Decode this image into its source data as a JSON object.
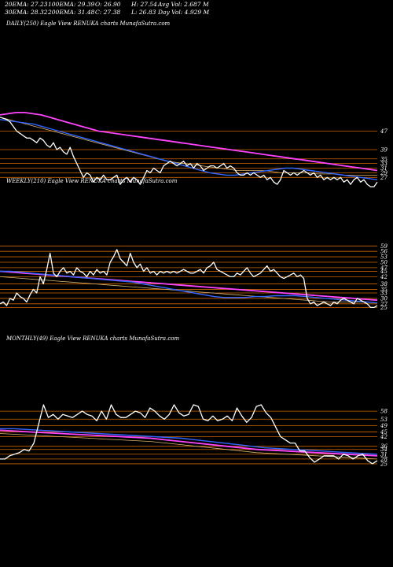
{
  "header": {
    "ema20": "20EMA: 27.23",
    "ema100": "100EMA: 29.39",
    "open": "O: 26.90",
    "high": "H: 27.54",
    "avg_vol": "Avg Vol: 2.687 M",
    "ema30": "30EMA: 28.32",
    "ema200": "200EMA: 31.48",
    "close": "C: 27.38",
    "low": "L: 26.83",
    "day_vol": "Day Vol: 4.929 M"
  },
  "colors": {
    "background": "#000000",
    "price": "#ffffff",
    "level_lines": "#cc6600",
    "ema_fast": "#3366ff",
    "ema_slow": "#ff44ff",
    "ema_mid": "#d9b36c"
  },
  "chart_data": [
    {
      "type": "line",
      "panel_label": "DAILY(250) Eagle  View  RENUKA charts MunafaSutra.com",
      "levels": [
        47,
        39,
        35,
        33,
        31,
        29,
        27
      ],
      "series": [
        {
          "values": [
            53,
            52.5,
            52,
            51,
            49,
            47,
            46,
            45,
            44,
            44,
            43,
            42,
            44,
            43,
            41,
            40,
            42,
            39,
            40,
            38,
            37,
            40,
            36,
            33,
            30,
            27,
            29,
            28,
            25,
            27,
            26,
            28,
            26,
            26,
            27,
            28,
            24,
            26,
            27,
            25,
            27,
            26,
            24,
            27,
            30,
            29,
            31,
            30,
            29,
            32,
            33,
            34,
            33,
            32,
            33,
            34,
            32,
            33,
            31,
            33,
            32,
            30,
            31,
            32,
            32,
            31,
            32,
            33,
            31,
            32,
            31,
            29,
            28,
            28,
            29,
            28,
            29,
            28,
            27,
            28,
            26,
            27,
            25,
            24,
            26,
            30,
            29,
            28,
            29,
            28,
            29,
            30,
            29,
            28,
            29,
            27,
            28,
            26,
            27,
            26,
            27,
            26,
            27,
            25,
            26,
            24,
            26,
            27,
            25,
            26,
            24,
            23,
            23,
            25
          ]
        },
        {
          "values": [
            52,
            51.5,
            51,
            50.5,
            50,
            49,
            48,
            47,
            46,
            45,
            44,
            43,
            42,
            41,
            40,
            39,
            38,
            37,
            36,
            35,
            34,
            33,
            32,
            31,
            30,
            29,
            28.5,
            28,
            28,
            28.5,
            29,
            29.5,
            30,
            30.5,
            31,
            31,
            30.5,
            30,
            29.5,
            29,
            28.5,
            28,
            27.5,
            27,
            26.5,
            26
          ]
        },
        {
          "values": [
            54,
            54.5,
            55,
            55,
            54.5,
            54,
            53,
            52,
            51,
            50,
            49,
            48,
            47,
            46.5,
            46,
            45.5,
            45,
            44.5,
            44,
            43.5,
            43,
            42.5,
            42,
            41.5,
            41,
            40.5,
            40,
            39.5,
            39,
            38.5,
            38,
            37.5,
            37,
            36.5,
            36,
            35.5,
            35,
            34.5,
            34,
            33.5,
            33,
            32.5,
            32,
            31.5,
            31,
            30.5,
            30
          ]
        },
        {
          "values": [
            53,
            52,
            51,
            50,
            49,
            48,
            47,
            46,
            45,
            44,
            43,
            42,
            41,
            40,
            39,
            38,
            37,
            36,
            35,
            34,
            33.5,
            33,
            32.5,
            32,
            31.5,
            31,
            30.5,
            30,
            30,
            30,
            30,
            29.5,
            29,
            29,
            29,
            29,
            28.5,
            28.5,
            28.5,
            28,
            28,
            28,
            28,
            28
          ]
        }
      ]
    },
    {
      "type": "line",
      "panel_label": "WEEKLY(210) Eagle  View  RENUKA charts MunafaSutra.com",
      "levels": [
        59,
        56,
        53,
        50,
        47,
        45,
        42,
        38,
        35,
        33,
        30,
        27,
        25
      ],
      "series": [
        {
          "values": [
            27,
            28,
            26,
            30,
            29,
            33,
            31,
            30,
            28,
            32,
            35,
            33,
            42,
            38,
            46,
            55,
            44,
            42,
            45,
            47,
            44,
            45,
            43,
            47,
            45,
            44,
            42,
            45,
            43,
            46,
            44,
            45,
            43,
            50,
            53,
            57,
            52,
            50,
            48,
            55,
            50,
            47,
            49,
            45,
            47,
            44,
            45,
            43,
            45,
            44,
            45,
            44,
            45,
            44,
            45,
            46,
            45,
            44,
            44,
            45,
            46,
            44,
            47,
            48,
            50,
            46,
            45,
            44,
            43,
            42,
            42,
            44,
            43,
            45,
            47,
            44,
            42,
            43,
            44,
            46,
            48,
            45,
            46,
            44,
            42,
            41,
            42,
            43,
            44,
            42,
            43,
            41,
            30,
            27,
            28,
            26,
            27,
            28,
            27,
            26,
            28,
            27,
            29,
            30,
            29,
            28,
            27,
            30,
            29,
            28,
            27,
            25,
            25,
            26
          ]
        },
        {
          "values": [
            45,
            45,
            44.5,
            44,
            43.5,
            43,
            42.5,
            42,
            41.5,
            41,
            40.5,
            40,
            39.5,
            39,
            38,
            37,
            36,
            35,
            34,
            33,
            32,
            31,
            30.5,
            30.5,
            30.5,
            31,
            31,
            31.5,
            31.5,
            31.5,
            31,
            30.5,
            30,
            29.5,
            29,
            28.5,
            28,
            27.5
          ]
        },
        {
          "values": [
            45,
            44.5,
            44,
            43.5,
            43,
            42.5,
            42,
            41.5,
            41,
            40.5,
            40,
            39.5,
            39,
            38.5,
            38,
            37.5,
            37,
            36.5,
            36,
            35.5,
            35,
            34.5,
            34,
            33.5,
            33,
            32.5,
            32,
            31.5,
            31,
            30.5,
            30,
            29.5,
            29
          ]
        },
        {
          "values": [
            42,
            41.5,
            41,
            40.5,
            40,
            39.5,
            39,
            38.5,
            38,
            37.5,
            37,
            36.5,
            36,
            35.5,
            35,
            34.5,
            34,
            33.5,
            33,
            32.5,
            32,
            31.5,
            31,
            30.5,
            30,
            29.5,
            29,
            28.5,
            28,
            28,
            28,
            28,
            27.5
          ]
        }
      ]
    },
    {
      "type": "line",
      "panel_label": "MONTHLY(49) Eagle  View  RENUKA charts MunafaSutra.com",
      "levels": [
        58,
        53,
        49,
        45,
        42,
        36,
        34,
        31,
        28,
        25
      ],
      "series": [
        {
          "values": [
            28,
            28,
            30,
            31,
            32,
            34,
            33,
            38,
            50,
            62,
            54,
            56,
            53,
            56,
            55,
            54,
            56,
            58,
            56,
            55,
            52,
            58,
            53,
            62,
            56,
            54,
            54,
            56,
            58,
            57,
            54,
            60,
            58,
            55,
            53,
            56,
            62,
            57,
            55,
            56,
            62,
            61,
            53,
            52,
            55,
            52,
            53,
            55,
            52,
            60,
            55,
            51,
            54,
            61,
            62,
            57,
            54,
            48,
            42,
            40,
            38,
            38,
            33,
            33,
            29,
            26,
            28,
            30,
            30,
            30,
            28,
            31,
            30,
            28,
            30,
            31,
            27,
            25,
            27
          ]
        },
        {
          "values": [
            47,
            47,
            46.5,
            46,
            45.5,
            45,
            44.5,
            44,
            43.5,
            43,
            42.5,
            42,
            41.5,
            41,
            40,
            39,
            38,
            37,
            36,
            35,
            34.5,
            34,
            33.5,
            33,
            32.5,
            32,
            31.5,
            31
          ]
        },
        {
          "values": [
            46,
            45.5,
            45,
            44.5,
            44,
            43.5,
            43,
            42.5,
            42,
            41.5,
            41,
            40,
            39,
            38,
            37,
            36,
            35,
            34,
            33.5,
            33,
            32.5,
            32,
            31.5,
            31,
            30.5,
            30
          ]
        },
        {
          "values": [
            44,
            43.5,
            43,
            42.5,
            42,
            41.5,
            41,
            40.5,
            40,
            39.5,
            39,
            38,
            37,
            36,
            35,
            34,
            33,
            32,
            31.5,
            31,
            30.5,
            30,
            29.5,
            29,
            28.5,
            28
          ]
        }
      ]
    }
  ]
}
